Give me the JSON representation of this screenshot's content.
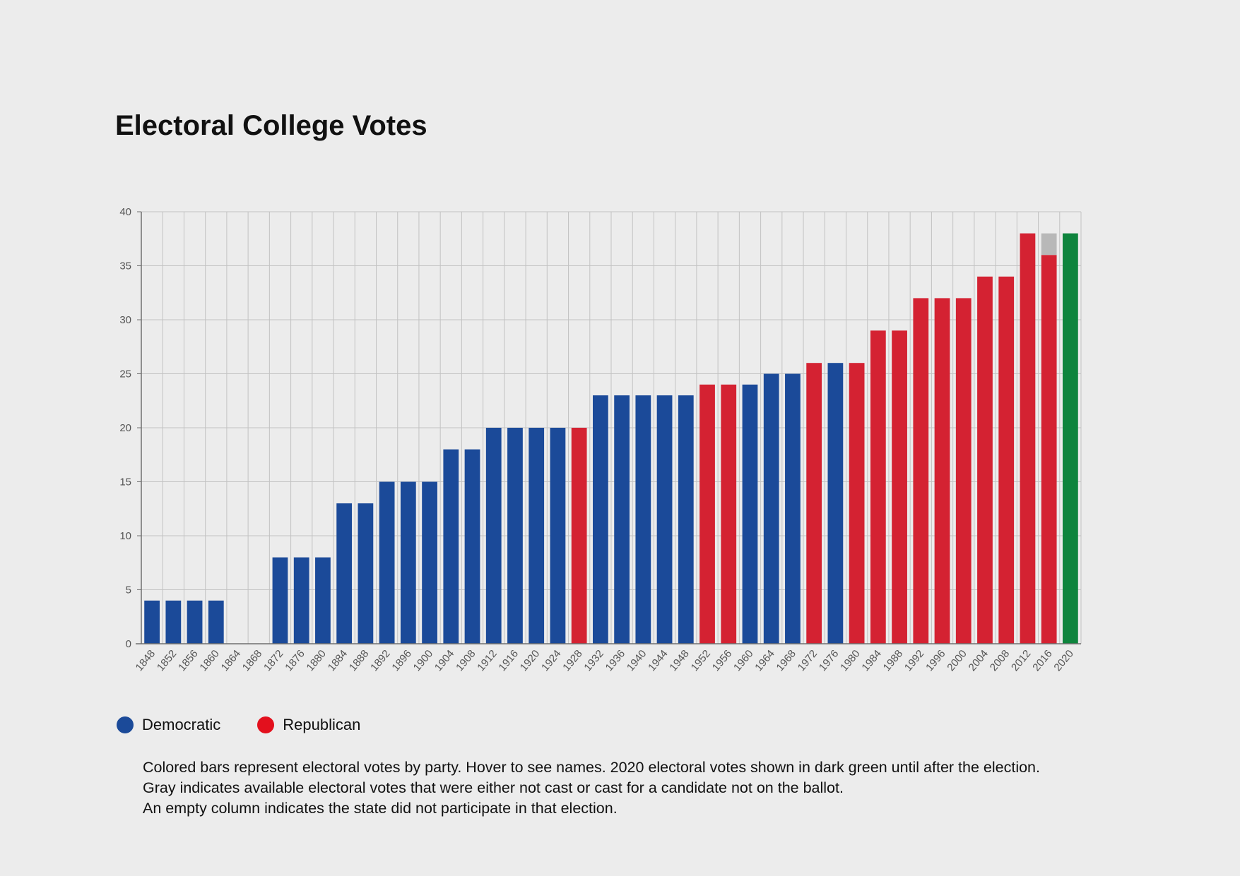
{
  "title": "Electoral College Votes",
  "legend": {
    "democratic": {
      "label": "Democratic",
      "color": "#1b4a99"
    },
    "republican": {
      "label": "Republican",
      "color": "#e3101d"
    }
  },
  "notes": [
    "Colored bars represent electoral votes by party. Hover to see names. 2020 electoral votes shown in dark green until after the election.",
    "Gray indicates available electoral votes that were either not cast or cast for a candidate not on the ballot.",
    "An empty column indicates the state did not participate in that election."
  ],
  "colors": {
    "D": "#1b4a99",
    "R": "#d42232",
    "G": "#0e843d",
    "gray": "#b8b8b8",
    "grid": "#c2c2c2",
    "axis": "#6f6f6f"
  },
  "chart_data": {
    "type": "bar",
    "title": "Electoral College Votes",
    "xlabel": "",
    "ylabel": "",
    "ylim": [
      0,
      40
    ],
    "yticks": [
      0,
      5,
      10,
      15,
      20,
      25,
      30,
      35,
      40
    ],
    "grid": true,
    "stacked": true,
    "categories": [
      "1848",
      "1852",
      "1856",
      "1860",
      "1864",
      "1868",
      "1872",
      "1876",
      "1880",
      "1884",
      "1888",
      "1892",
      "1896",
      "1900",
      "1904",
      "1908",
      "1912",
      "1916",
      "1920",
      "1924",
      "1928",
      "1932",
      "1936",
      "1940",
      "1944",
      "1948",
      "1952",
      "1956",
      "1960",
      "1964",
      "1968",
      "1972",
      "1976",
      "1980",
      "1984",
      "1988",
      "1992",
      "1996",
      "2000",
      "2004",
      "2008",
      "2012",
      "2016",
      "2020"
    ],
    "party": [
      "D",
      "D",
      "D",
      "D",
      "",
      "",
      "D",
      "D",
      "D",
      "D",
      "D",
      "D",
      "D",
      "D",
      "D",
      "D",
      "D",
      "D",
      "D",
      "D",
      "R",
      "D",
      "D",
      "D",
      "D",
      "D",
      "R",
      "R",
      "D",
      "D",
      "D",
      "R",
      "D",
      "R",
      "R",
      "R",
      "R",
      "R",
      "R",
      "R",
      "R",
      "R",
      "R",
      "G"
    ],
    "series": [
      {
        "key": "votes",
        "values": [
          4,
          4,
          4,
          4,
          0,
          0,
          8,
          8,
          8,
          13,
          13,
          15,
          15,
          15,
          18,
          18,
          20,
          20,
          20,
          20,
          20,
          23,
          23,
          23,
          23,
          23,
          24,
          24,
          24,
          25,
          25,
          26,
          26,
          26,
          29,
          29,
          32,
          32,
          32,
          34,
          34,
          38,
          36,
          38
        ]
      },
      {
        "key": "gray",
        "values": [
          0,
          0,
          0,
          0,
          0,
          0,
          0,
          0,
          0,
          0,
          0,
          0,
          0,
          0,
          0,
          0,
          0,
          0,
          0,
          0,
          0,
          0,
          0,
          0,
          0,
          0,
          0,
          0,
          0,
          0,
          0,
          0,
          0,
          0,
          0,
          0,
          0,
          0,
          0,
          0,
          0,
          0,
          2,
          0
        ]
      }
    ]
  }
}
